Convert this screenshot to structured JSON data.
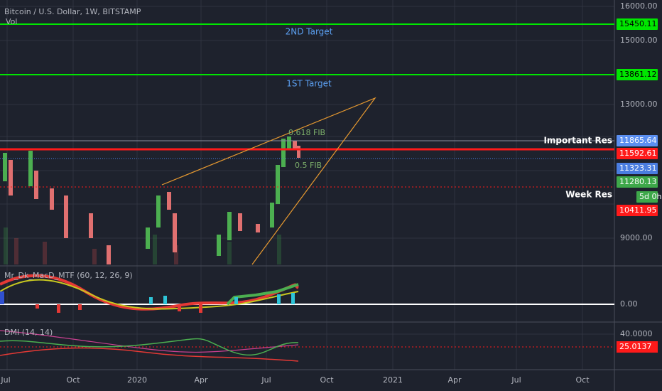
{
  "header": {
    "symbol": "Bitcoin / U.S. Dollar, 1W, BITSTAMP",
    "volume": "Vol"
  },
  "annotations": {
    "target_2": "2ND Target",
    "target_1": "1ST Target",
    "fib_618": "0.618 FIB",
    "fib_5": "0.5 FIB",
    "important_res": "Important Res",
    "week_res": "Week Res"
  },
  "price_axis": {
    "ticks": [
      "16000.00",
      "15000.00",
      "13000.00",
      "9000.00"
    ]
  },
  "price_labels": [
    {
      "label": "15450.11",
      "color": "#00e600",
      "text_color": "#000000"
    },
    {
      "label": "13861.12",
      "color": "#00e600",
      "text_color": "#000000"
    },
    {
      "label": "11865.64",
      "color": "#5b8ff0",
      "text_color": "#ffffff"
    },
    {
      "label": "11592.61",
      "color": "#ff1a1a",
      "text_color": "#ffffff"
    },
    {
      "label": "11323.31",
      "color": "#4a7de0",
      "text_color": "#ffffff"
    },
    {
      "label": "11280.13",
      "color": "#3ea84a",
      "text_color": "#ffffff"
    },
    {
      "label": "5d 0h",
      "color": "#3ea84a",
      "text_color": "#ffffff"
    },
    {
      "label": "10411.95",
      "color": "#ff1a1a",
      "text_color": "#ffffff"
    }
  ],
  "macd": {
    "title": "Mr_Dk_MacD_MTF (60, 12, 26, 9)",
    "zero": "0.00"
  },
  "dmi": {
    "title": "DMI (14, 14)",
    "tick": "40.0000",
    "label": "25.0137",
    "color": "#ff1a1a"
  },
  "time_axis": [
    "Jul",
    "Oct",
    "2020",
    "Apr",
    "Jul",
    "Oct",
    "2021",
    "Apr",
    "Jul",
    "Oct"
  ]
}
